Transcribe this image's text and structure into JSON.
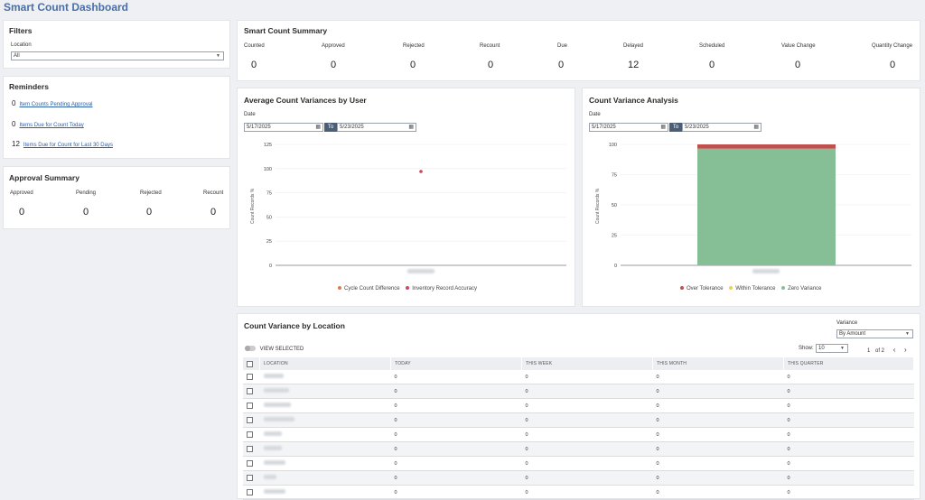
{
  "page": {
    "title": "Smart Count Dashboard"
  },
  "filters": {
    "title": "Filters",
    "location_label": "Location",
    "location_value": "All"
  },
  "reminders": {
    "title": "Reminders",
    "items": [
      {
        "count": "0",
        "label": "Item Counts Pending Approval"
      },
      {
        "count": "0",
        "label": "Items Due for Count Today"
      },
      {
        "count": "12",
        "label": "Items Due for Count for Last 30 Days"
      }
    ]
  },
  "approval_summary": {
    "title": "Approval Summary",
    "stats": [
      {
        "label": "Approved",
        "value": "0"
      },
      {
        "label": "Pending",
        "value": "0"
      },
      {
        "label": "Rejected",
        "value": "0"
      },
      {
        "label": "Recount",
        "value": "0"
      }
    ]
  },
  "smart_count_summary": {
    "title": "Smart Count Summary",
    "stats": [
      {
        "label": "Counted",
        "value": "0"
      },
      {
        "label": "Approved",
        "value": "0"
      },
      {
        "label": "Rejected",
        "value": "0"
      },
      {
        "label": "Recount",
        "value": "0"
      },
      {
        "label": "Due",
        "value": "0"
      },
      {
        "label": "Delayed",
        "value": "12"
      },
      {
        "label": "Scheduled",
        "value": "0"
      },
      {
        "label": "Value Change",
        "value": "0"
      },
      {
        "label": "Quantity Change",
        "value": "0"
      }
    ]
  },
  "avg_variance_chart": {
    "title": "Average Count Variances by User",
    "date_label": "Date",
    "date_from": "5/17/2025",
    "to_label": "To",
    "date_to": "5/23/2025",
    "y_axis_title": "Count Records %",
    "y_ticks": [
      "125",
      "100",
      "75",
      "50",
      "25",
      "0"
    ],
    "legend": [
      {
        "name": "Cycle Count Difference",
        "color": "#e07a4f"
      },
      {
        "name": "Inventory Record Accuracy",
        "color": "#d0455e"
      }
    ]
  },
  "variance_analysis_chart": {
    "title": "Count Variance Analysis",
    "date_label": "Date",
    "date_from": "5/17/2025",
    "to_label": "To",
    "date_to": "5/23/2025",
    "y_axis_title": "Count Records %",
    "y_ticks": [
      "100",
      "75",
      "50",
      "25",
      "0"
    ],
    "legend": [
      {
        "name": "Over Tolerance",
        "color": "#c0504d"
      },
      {
        "name": "Within Tolerance",
        "color": "#e8d44d"
      },
      {
        "name": "Zero Variance",
        "color": "#86bf96"
      }
    ]
  },
  "chart_data": [
    {
      "type": "scatter",
      "title": "Average Count Variances by User",
      "ylabel": "Count Records %",
      "ylim": [
        0,
        125
      ],
      "series": [
        {
          "name": "Cycle Count Difference",
          "values": []
        },
        {
          "name": "Inventory Record Accuracy",
          "values": [
            97
          ]
        }
      ]
    },
    {
      "type": "bar",
      "stacked": true,
      "title": "Count Variance Analysis",
      "ylabel": "Count Records %",
      "ylim": [
        0,
        100
      ],
      "series": [
        {
          "name": "Zero Variance",
          "values": [
            96.5
          ]
        },
        {
          "name": "Within Tolerance",
          "values": [
            0
          ]
        },
        {
          "name": "Over Tolerance",
          "values": [
            3.5
          ]
        }
      ]
    }
  ],
  "location_table": {
    "title": "Count Variance by Location",
    "variance_label": "Variance",
    "variance_value": "By Amount",
    "view_selected_label": "VIEW SELECTED",
    "show_label": "Show:",
    "show_value": "10",
    "page_current": "1",
    "page_of": "of 2",
    "columns": [
      "LOCATION",
      "TODAY",
      "THIS WEEK",
      "THIS MONTH",
      "THIS QUARTER"
    ],
    "rows": [
      [
        "0",
        "0",
        "0",
        "0"
      ],
      [
        "0",
        "0",
        "0",
        "0"
      ],
      [
        "0",
        "0",
        "0",
        "0"
      ],
      [
        "0",
        "0",
        "0",
        "0"
      ],
      [
        "0",
        "0",
        "0",
        "0"
      ],
      [
        "0",
        "0",
        "0",
        "0"
      ],
      [
        "0",
        "0",
        "0",
        "0"
      ],
      [
        "0",
        "0",
        "0",
        "0"
      ],
      [
        "0",
        "0",
        "0",
        "0"
      ]
    ]
  }
}
